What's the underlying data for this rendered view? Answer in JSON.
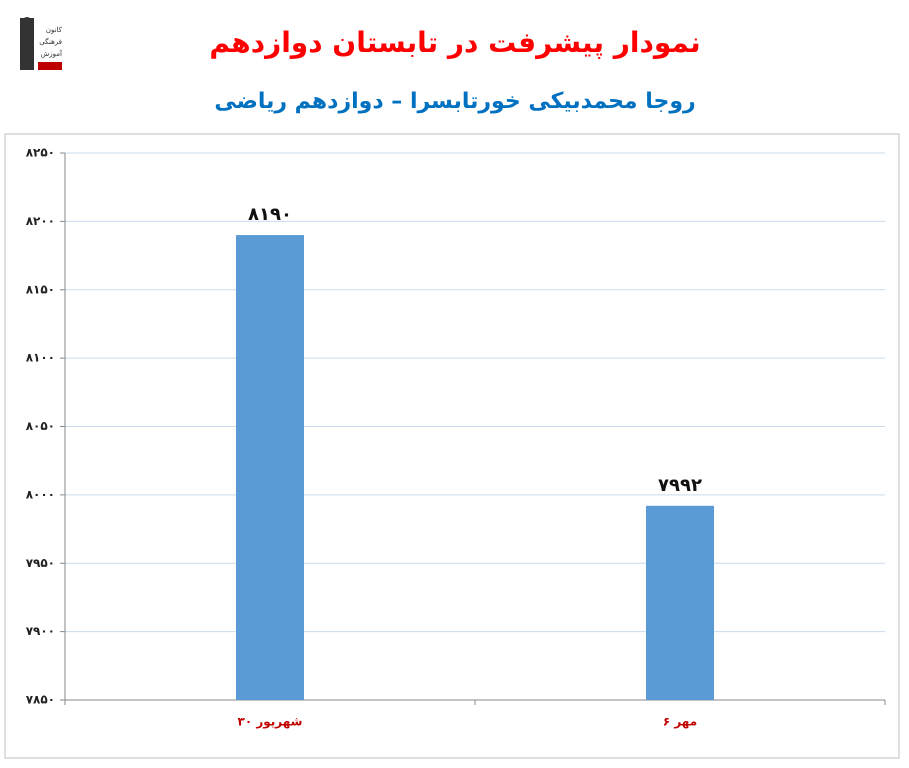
{
  "logo": [
    "کانون",
    "فرهنگی",
    "آموزش"
  ],
  "chart_data": {
    "type": "bar",
    "title": "نمودار پیشرفت در تابستان دوازدهم",
    "subtitle": "روجا محمدبیکی خورتابسرا – دوازدهم ریاضی",
    "categories": [
      "۳۰ شهریور",
      "۶ مهر"
    ],
    "values": [
      8190,
      7992
    ],
    "value_labels": [
      "۸۱۹۰",
      "۷۹۹۲"
    ],
    "color": "#5b9bd5",
    "ylim": [
      7850,
      8250
    ],
    "yticks": [
      {
        "value": 7850,
        "label": "۷۸۵۰"
      },
      {
        "value": 7900,
        "label": "۷۹۰۰"
      },
      {
        "value": 7950,
        "label": "۷۹۵۰"
      },
      {
        "value": 8000,
        "label": "۸۰۰۰"
      },
      {
        "value": 8050,
        "label": "۸۰۵۰"
      },
      {
        "value": 8100,
        "label": "۸۱۰۰"
      },
      {
        "value": 8150,
        "label": "۸۱۵۰"
      },
      {
        "value": 8200,
        "label": "۸۲۰۰"
      },
      {
        "value": 8250,
        "label": "۸۲۵۰"
      }
    ],
    "grid": true
  }
}
